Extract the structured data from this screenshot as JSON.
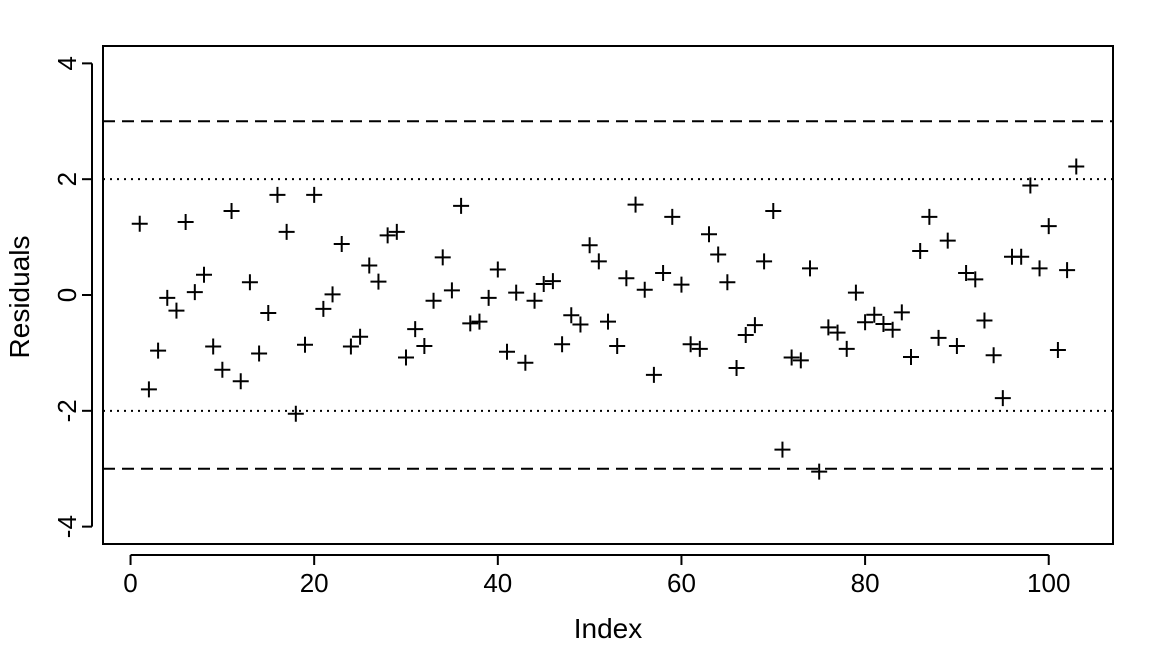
{
  "chart_data": {
    "type": "scatter",
    "title": "",
    "xlabel": "Index",
    "ylabel": "Residuals",
    "xlim": [
      -3,
      107
    ],
    "ylim": [
      -4.3,
      4.3
    ],
    "x_ticks": [
      0,
      20,
      40,
      60,
      80,
      100
    ],
    "x_tick_labels": [
      "0",
      "20",
      "40",
      "60",
      "80",
      "100"
    ],
    "y_ticks": [
      -4,
      -2,
      0,
      2,
      4
    ],
    "y_tick_labels": [
      "-4",
      "-2",
      "0",
      "2",
      "4"
    ],
    "marker": "plus",
    "grid": false,
    "reference_lines": [
      {
        "y": 3,
        "style": "dashed"
      },
      {
        "y": 2,
        "style": "dotted"
      },
      {
        "y": -2,
        "style": "dotted"
      },
      {
        "y": -3,
        "style": "dashed"
      }
    ],
    "x": [
      1,
      2,
      3,
      4,
      5,
      6,
      7,
      8,
      9,
      10,
      11,
      12,
      13,
      14,
      15,
      16,
      17,
      18,
      19,
      20,
      21,
      22,
      23,
      24,
      25,
      26,
      27,
      28,
      29,
      30,
      31,
      32,
      33,
      34,
      35,
      36,
      37,
      38,
      39,
      40,
      41,
      42,
      43,
      44,
      45,
      46,
      47,
      48,
      49,
      50,
      51,
      52,
      53,
      54,
      55,
      56,
      57,
      58,
      59,
      60,
      61,
      62,
      63,
      64,
      65,
      66,
      67,
      68,
      69,
      70,
      71,
      72,
      73,
      74,
      75,
      76,
      77,
      78,
      79,
      80,
      81,
      82,
      83,
      84,
      85,
      86,
      87,
      88,
      89,
      90,
      91,
      92,
      93,
      94,
      95,
      96,
      97,
      98,
      99,
      100,
      101,
      102,
      103
    ],
    "y": [
      1.23,
      -1.63,
      -0.96,
      -0.05,
      -0.27,
      1.26,
      0.05,
      0.35,
      -0.89,
      -1.29,
      1.45,
      -1.49,
      0.22,
      -1.01,
      -0.31,
      1.73,
      1.09,
      -2.05,
      -0.86,
      1.73,
      -0.24,
      0.01,
      0.88,
      -0.89,
      -0.72,
      0.51,
      0.23,
      1.03,
      1.09,
      -1.08,
      -0.59,
      -0.88,
      -0.1,
      0.65,
      0.08,
      1.54,
      -0.49,
      -0.46,
      -0.05,
      0.44,
      -0.98,
      0.04,
      -1.17,
      -0.1,
      0.19,
      0.24,
      -0.85,
      -0.35,
      -0.51,
      0.86,
      0.58,
      -0.46,
      -0.88,
      0.29,
      1.56,
      0.09,
      -1.38,
      0.38,
      1.35,
      0.18,
      -0.85,
      -0.93,
      1.05,
      0.7,
      0.22,
      -1.26,
      -0.69,
      -0.52,
      0.58,
      1.45,
      -2.67,
      -1.08,
      -1.13,
      0.46,
      -3.05,
      -0.56,
      -0.65,
      -0.93,
      0.04,
      -0.47,
      -0.34,
      -0.5,
      -0.6,
      -0.3,
      -1.07,
      0.76,
      1.35,
      -0.74,
      0.94,
      -0.88,
      0.38,
      0.27,
      -0.44,
      -1.04,
      -1.78,
      0.66,
      0.66,
      1.89,
      0.46,
      1.19,
      -0.95,
      0.43,
      2.22
    ]
  }
}
